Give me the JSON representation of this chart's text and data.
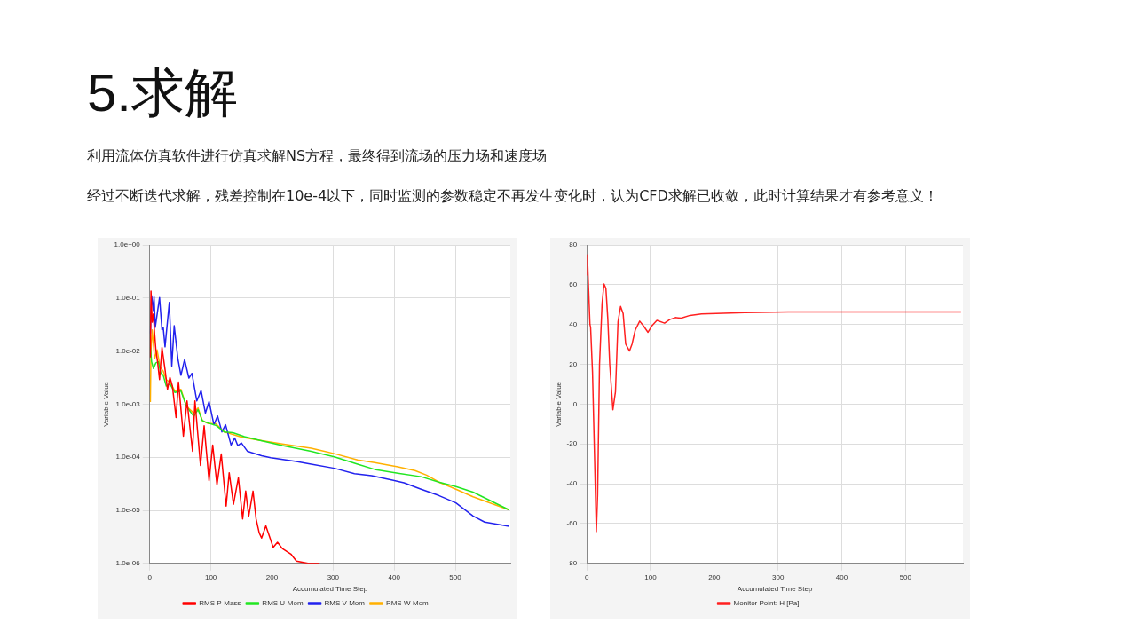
{
  "chart_data": [
    {
      "type": "other",
      "title": "5.求解",
      "annotations": [
        "利用流体仿真软件进行仿真求解NS方程，最终得到流场的压力场和速度场",
        "经过不断迭代求解，残差控制在10e-4以下，同时监测的参数稳定不再发生变化时，认为CFD求解已收敛，此时计算结果才有参考意义！"
      ]
    },
    {
      "type": "line",
      "xlabel": "Accumulated Time Step",
      "ylabel": "Variable Value",
      "log": "y",
      "grid": true,
      "legend": "bottom",
      "marker": "none",
      "xlim": [
        0,
        590
      ],
      "xticks": [
        0,
        100,
        200,
        300,
        400,
        500
      ],
      "ylim": [
        1e-06,
        1
      ],
      "yticks": [
        {
          "value": 1,
          "label": "1.0e+00"
        },
        {
          "value": 0.1,
          "label": "1.0e-01"
        },
        {
          "value": 0.01,
          "label": "1.0e-02"
        },
        {
          "value": 0.001,
          "label": "1.0e-03"
        },
        {
          "value": 0.0001,
          "label": "1.0e-04"
        },
        {
          "value": 1e-05,
          "label": "1.0e-05"
        },
        {
          "value": 1e-06,
          "label": "1.0e-06"
        }
      ],
      "series": [
        {
          "name": "RMS P-Mass",
          "color": "#ff0000",
          "x": [
            1,
            2,
            4,
            6,
            8,
            10,
            13,
            16,
            20,
            25,
            29,
            33,
            37,
            43,
            47,
            55,
            61,
            70,
            74,
            83,
            89,
            97,
            103,
            110,
            117,
            125,
            130,
            137,
            145,
            152,
            157,
            162,
            169,
            174,
            179,
            183,
            190,
            202,
            209,
            217,
            231,
            240,
            259,
            278
          ],
          "values": [
            0.0076,
            0.135,
            0.035,
            0.05,
            0.021,
            0.0105,
            0.006,
            0.0029,
            0.0117,
            0.0045,
            0.0019,
            0.0032,
            0.0022,
            0.00056,
            0.0026,
            0.00025,
            0.00115,
            0.00013,
            0.00115,
            7e-05,
            0.00039,
            3.6e-05,
            0.00017,
            3e-05,
            0.000115,
            1.2e-05,
            5.1e-05,
            1.3e-05,
            4.1e-05,
            6.9e-06,
            2.3e-05,
            7.8e-06,
            2.3e-05,
            6.9e-06,
            3.8e-06,
            3e-06,
            5.1e-06,
            2e-06,
            2.5e-06,
            1.9e-06,
            1.5e-06,
            1.1e-06,
            1e-06,
            1e-06
          ]
        },
        {
          "name": "RMS U-Mom",
          "color": "#22e622",
          "x": [
            1,
            3,
            6,
            10,
            14,
            18,
            22,
            27,
            33,
            41,
            51,
            60,
            72,
            79,
            86,
            93,
            108,
            122,
            136,
            155,
            179,
            217,
            264,
            302,
            340,
            368,
            406,
            444,
            473,
            501,
            529,
            588
          ],
          "values": [
            0.0117,
            0.0063,
            0.0047,
            0.006,
            0.0063,
            0.0039,
            0.0035,
            0.0022,
            0.0024,
            0.00166,
            0.00178,
            0.00091,
            0.00059,
            0.00079,
            0.00049,
            0.00045,
            0.0004,
            0.0003,
            0.00029,
            0.000245,
            0.00021,
            0.000166,
            0.000129,
            0.000102,
            7.4e-05,
            5.9e-05,
            5e-05,
            4.3e-05,
            3.4e-05,
            2.8e-05,
            2.2e-05,
            1.02e-05
          ]
        },
        {
          "name": "RMS V-Mom",
          "color": "#2222ee",
          "x": [
            1,
            3,
            6,
            7,
            9,
            16,
            20,
            22,
            25,
            32,
            36,
            40,
            46,
            51,
            57,
            64,
            69,
            77,
            84,
            91,
            97,
            105,
            111,
            118,
            124,
            133,
            139,
            144,
            150,
            160,
            169,
            183,
            198,
            240,
            264,
            302,
            335,
            363,
            397,
            416,
            444,
            473,
            501,
            529,
            548,
            588
          ],
          "values": [
            0.0215,
            0.11,
            0.058,
            0.105,
            0.028,
            0.102,
            0.025,
            0.028,
            0.012,
            0.083,
            0.0052,
            0.03,
            0.0072,
            0.0035,
            0.0069,
            0.0031,
            0.0038,
            0.00115,
            0.0018,
            0.00068,
            0.00112,
            0.00041,
            0.0006,
            0.0003,
            0.00041,
            0.00017,
            0.00023,
            0.000166,
            0.000186,
            0.000129,
            0.00012,
            0.000107,
            9.8e-05,
            8.3e-05,
            7.4e-05,
            6.2e-05,
            4.9e-05,
            4.5e-05,
            3.7e-05,
            3.3e-05,
            2.5e-05,
            1.9e-05,
            1.38e-05,
            7.8e-06,
            6e-06,
            5e-06
          ]
        },
        {
          "name": "RMS W-Mom",
          "color": "#ffb000",
          "x": [
            1,
            2,
            4,
            8,
            12,
            17,
            22,
            27,
            33,
            41,
            51,
            60,
            72,
            79,
            86,
            96,
            108,
            122,
            150,
            179,
            217,
            264,
            302,
            340,
            368,
            406,
            434,
            453,
            473,
            501,
            529,
            588
          ],
          "values": [
            0.0011,
            0.0105,
            0.025,
            0.0072,
            0.0105,
            0.005,
            0.0042,
            0.0029,
            0.0026,
            0.00178,
            0.0019,
            0.00091,
            0.00068,
            0.00085,
            0.00049,
            0.00043,
            0.00043,
            0.0003,
            0.00024,
            0.00021,
            0.000178,
            0.000148,
            0.000117,
            8.9e-05,
            7.9e-05,
            6.6e-05,
            5.6e-05,
            4.6e-05,
            3.4e-05,
            2.5e-05,
            1.8e-05,
            1.02e-05
          ]
        }
      ]
    },
    {
      "type": "line",
      "xlabel": "Accumulated Time Step",
      "ylabel": "Variable Value",
      "grid": true,
      "legend": "bottom",
      "marker": "none",
      "xlim": [
        0,
        590
      ],
      "xticks": [
        0,
        100,
        200,
        300,
        400,
        500
      ],
      "ylim": [
        -80,
        80
      ],
      "yticks": [
        -80,
        -60,
        -40,
        -20,
        0,
        20,
        40,
        60,
        80
      ],
      "series": [
        {
          "name": "Monitor Point: H [Pa]",
          "color": "#ff2020",
          "x": [
            0,
            1,
            2,
            5,
            6,
            9,
            15,
            17,
            20,
            24,
            27,
            30,
            33,
            36,
            41,
            45,
            49,
            53,
            57,
            61,
            67,
            71,
            76,
            83,
            89,
            96,
            102,
            110,
            122,
            130,
            139,
            148,
            162,
            180,
            203,
            248,
            316,
            408,
            587
          ],
          "values": [
            65,
            75,
            65,
            40,
            38.6,
            16,
            -64,
            -45.6,
            20,
            50.5,
            60.4,
            58.2,
            42.8,
            20,
            -2.8,
            6.3,
            41.4,
            49.1,
            45.6,
            30.2,
            26.7,
            30.2,
            37.2,
            41.7,
            39.3,
            36.1,
            39.3,
            42.1,
            40.7,
            42.5,
            43.5,
            43.2,
            44.6,
            45.3,
            45.6,
            46,
            46.3,
            46.3,
            46.3
          ]
        }
      ]
    }
  ]
}
